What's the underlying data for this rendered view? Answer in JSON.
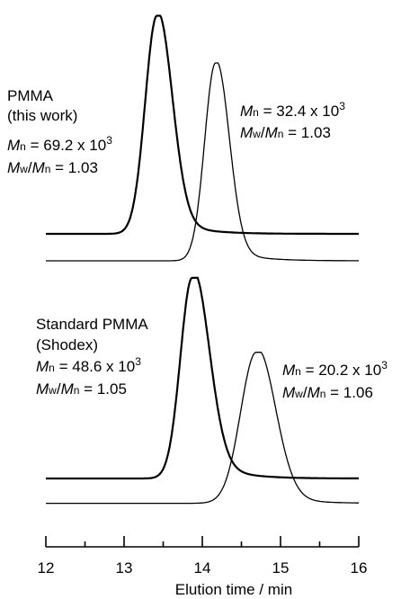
{
  "chart_data": {
    "type": "line",
    "xlabel": "Elution time / min",
    "xlim": [
      12,
      16
    ],
    "xticks": [
      "12",
      "13",
      "14",
      "15",
      "16"
    ],
    "panels": [
      {
        "name": "top",
        "series": [
          {
            "label_lines": [
              "PMMA",
              "(this work)"
            ],
            "mn_prefix": "M",
            "mn_sub": "n",
            "mn_value": " = 69.2 x 10",
            "mn_exp": "3",
            "pdi_a": "M",
            "pdi_a_sub": "w",
            "pdi_sep": "/",
            "pdi_b": "M",
            "pdi_b_sub": "n",
            "pdi_value": " = 1.03",
            "peak_time": 13.42,
            "sigma_left": 0.15,
            "sigma_right": 0.19,
            "tail": 0.1,
            "peak_height": 0.97,
            "baseline": 0.0
          },
          {
            "mn_prefix": "M",
            "mn_sub": "n",
            "mn_value": " = 32.4 x 10",
            "mn_exp": "3",
            "pdi_a": "M",
            "pdi_a_sub": "w",
            "pdi_sep": "/",
            "pdi_b": "M",
            "pdi_b_sub": "n",
            "pdi_value": " = 1.03",
            "peak_time": 14.17,
            "sigma_left": 0.14,
            "sigma_right": 0.17,
            "tail": 0.08,
            "peak_height": 0.88,
            "baseline": -0.12
          }
        ]
      },
      {
        "name": "bottom",
        "series": [
          {
            "label_lines": [
              "Standard PMMA",
              "(Shodex)"
            ],
            "mn_prefix": "M",
            "mn_sub": "n",
            "mn_value": " = 48.6 x 10",
            "mn_exp": "3",
            "pdi_a": "M",
            "pdi_a_sub": "w",
            "pdi_sep": "/",
            "pdi_b": "M",
            "pdi_b_sub": "n",
            "pdi_value": " = 1.05",
            "peak_time": 13.87,
            "sigma_left": 0.15,
            "sigma_right": 0.21,
            "tail": 0.15,
            "peak_height": 0.97,
            "baseline": 0.0
          },
          {
            "mn_prefix": "M",
            "mn_sub": "n",
            "mn_value": " = 20.2 x 10",
            "mn_exp": "3",
            "pdi_a": "M",
            "pdi_a_sub": "w",
            "pdi_sep": "/",
            "pdi_b": "M",
            "pdi_b_sub": "n",
            "pdi_value": " = 1.06",
            "peak_time": 14.69,
            "sigma_left": 0.2,
            "sigma_right": 0.24,
            "tail": 0.1,
            "peak_height": 0.73,
            "baseline": -0.12
          }
        ]
      }
    ]
  }
}
